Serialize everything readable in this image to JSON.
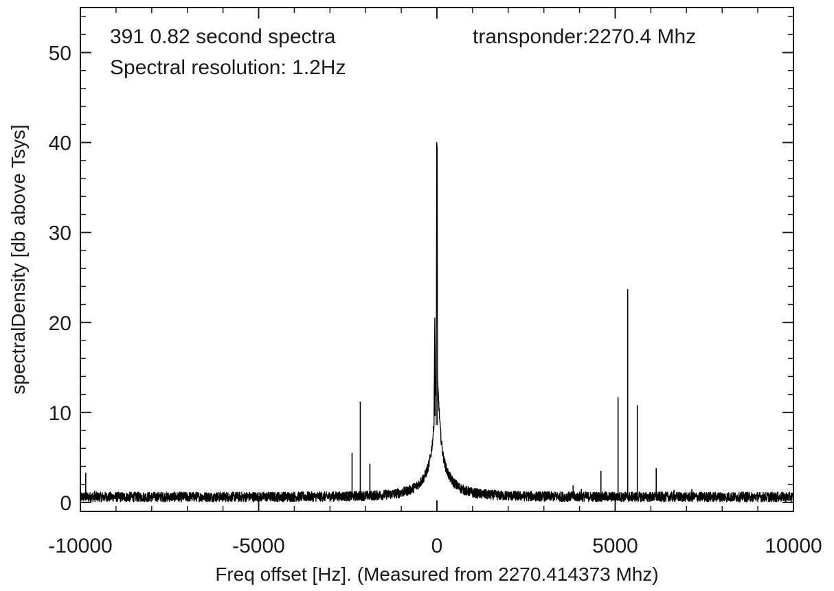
{
  "chart_data": {
    "type": "line",
    "xlabel": "Freq offset [Hz]. (Measured from 2270.414373 Mhz)",
    "ylabel": "spectralDensity [db above Tsys]",
    "annotations": [
      "391 0.82 second spectra",
      "Spectral resolution: 1.2Hz",
      "transponder:2270.4 Mhz"
    ],
    "xlim": [
      -10000,
      10000
    ],
    "ylim": [
      -1,
      55
    ],
    "x_ticks": [
      -10000,
      -5000,
      0,
      5000,
      10000
    ],
    "y_ticks": [
      0,
      10,
      20,
      30,
      40,
      50
    ],
    "grid": false,
    "line_color": "#000000",
    "noise_floor_db": 0.6,
    "series": [
      {
        "peak": {
          "x": 0,
          "y": 40
        },
        "shoulder": {
          "x": -60,
          "y": 20.5
        },
        "spikes": [
          {
            "x": -9850,
            "y": 3.3
          },
          {
            "x": -9600,
            "y": 1.3
          },
          {
            "x": -2380,
            "y": 5.5
          },
          {
            "x": -2150,
            "y": 11.2
          },
          {
            "x": -1880,
            "y": 4.3
          },
          {
            "x": 3820,
            "y": 1.9
          },
          {
            "x": 4050,
            "y": 1.5
          },
          {
            "x": 4600,
            "y": 3.5
          },
          {
            "x": 5080,
            "y": 11.7
          },
          {
            "x": 5350,
            "y": 23.7
          },
          {
            "x": 5620,
            "y": 10.8
          },
          {
            "x": 6150,
            "y": 3.8
          },
          {
            "x": 6650,
            "y": 1.4
          },
          {
            "x": 7150,
            "y": 1.5
          }
        ]
      }
    ]
  }
}
